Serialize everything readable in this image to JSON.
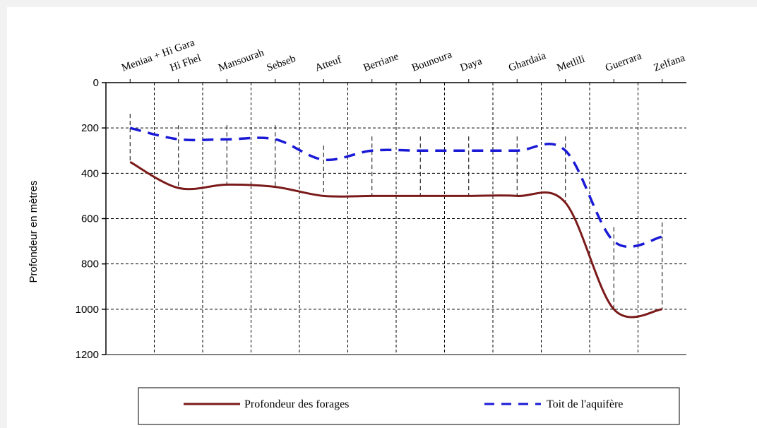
{
  "chart_data": {
    "type": "line",
    "title": "",
    "xlabel": "",
    "ylabel": "Profondeur en mètres",
    "y_inverted": true,
    "ylim": [
      0,
      1200
    ],
    "yticks": [
      0,
      200,
      400,
      600,
      800,
      1000,
      1200
    ],
    "grid": true,
    "legend_position": "bottom",
    "categories": [
      "Meniaa + Hi Gara",
      "Hi Fhel",
      "Mansourah",
      "Sebseb",
      "Atteuf",
      "Berriane",
      "Bounoura",
      "Daya",
      "Ghardaia",
      "Metlili",
      "Guerrara",
      "Zelfana"
    ],
    "series": [
      {
        "name": "Profondeur des forages",
        "color": "#7b1a1a",
        "style": "solid",
        "x": [
          0.5,
          1.5,
          2.5,
          3.5,
          4.5,
          5.5,
          6.5,
          7.5,
          8.5,
          9.5,
          10.5,
          11.5
        ],
        "values": [
          350,
          465,
          450,
          460,
          500,
          500,
          500,
          500,
          500,
          530,
          1000,
          1000
        ]
      },
      {
        "name": "Toit de l'aquifère",
        "color": "#1a1ad6",
        "style": "dashed",
        "x": [
          0.5,
          1.5,
          2.5,
          3.5,
          4.5,
          5.5,
          6.5,
          7.5,
          8.5,
          9.5,
          10.5,
          11.5
        ],
        "values": [
          200,
          250,
          250,
          250,
          340,
          300,
          300,
          300,
          300,
          300,
          700,
          680
        ]
      }
    ]
  }
}
